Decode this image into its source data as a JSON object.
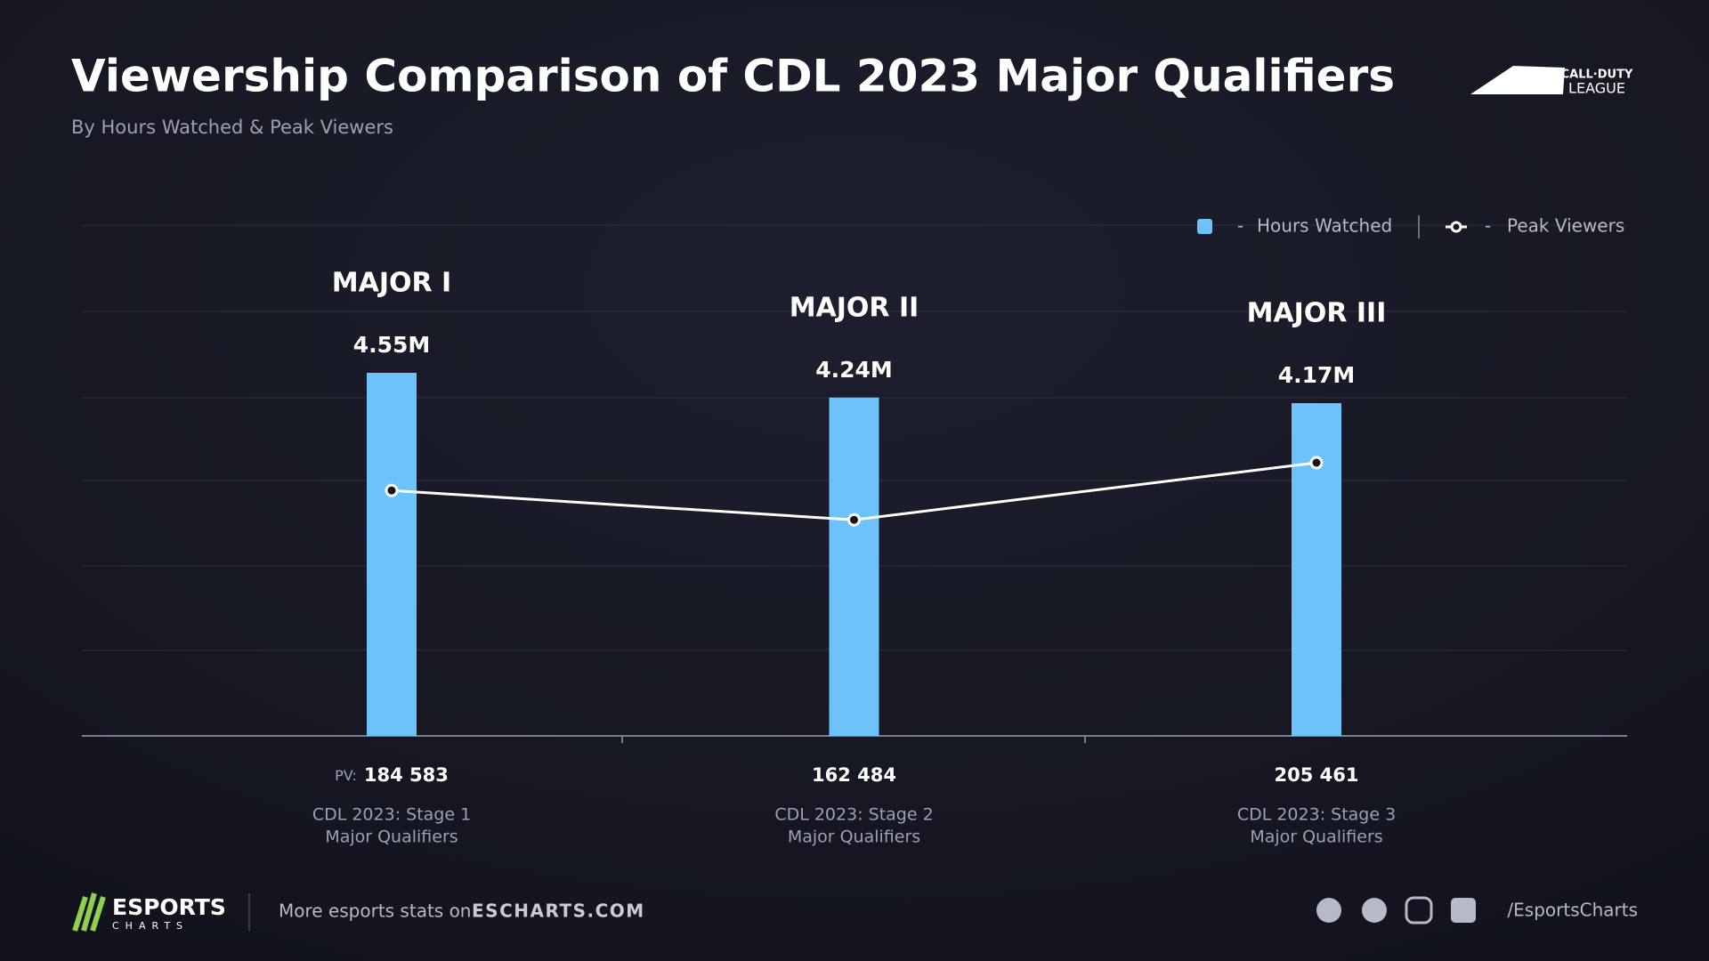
{
  "chart_data": {
    "type": "bar-line",
    "title": "Viewership Comparison of CDL 2023 Major Qualifiers",
    "subtitle": "By Hours Watched & Peak Viewers",
    "categories": [
      [
        "CDL 2023: Stage 1",
        "Major Qualifiers"
      ],
      [
        "CDL 2023: Stage 2",
        "Major Qualifiers"
      ],
      [
        "CDL 2023: Stage 3",
        "Major Qualifiers"
      ]
    ],
    "logos": [
      "MAJOR I",
      "MAJOR II",
      "MAJOR III"
    ],
    "pv_prefix": "PV:",
    "legend_dash": "-",
    "series": [
      {
        "name": "Hours Watched",
        "type": "bar",
        "color": "#6cc3fb",
        "values": [
          4550000,
          4240000,
          4170000
        ],
        "value_labels": [
          "4.55M",
          "4.24M",
          "4.17M"
        ]
      },
      {
        "name": "Peak Viewers",
        "type": "line",
        "color": "#ffffff",
        "axis": "y2",
        "values": [
          184583,
          162484,
          205461
        ],
        "value_labels": [
          "184 583",
          "162 484",
          "205 461"
        ]
      }
    ]
  },
  "header": {
    "logo": [
      "CALL·DUTY",
      "LEAGUE"
    ]
  },
  "footer": {
    "brand": "ESPORTS",
    "brand_sub": "CHARTS",
    "text": "More esports stats on",
    "site": "ESCHARTS.COM",
    "handle": "/EsportsCharts"
  }
}
